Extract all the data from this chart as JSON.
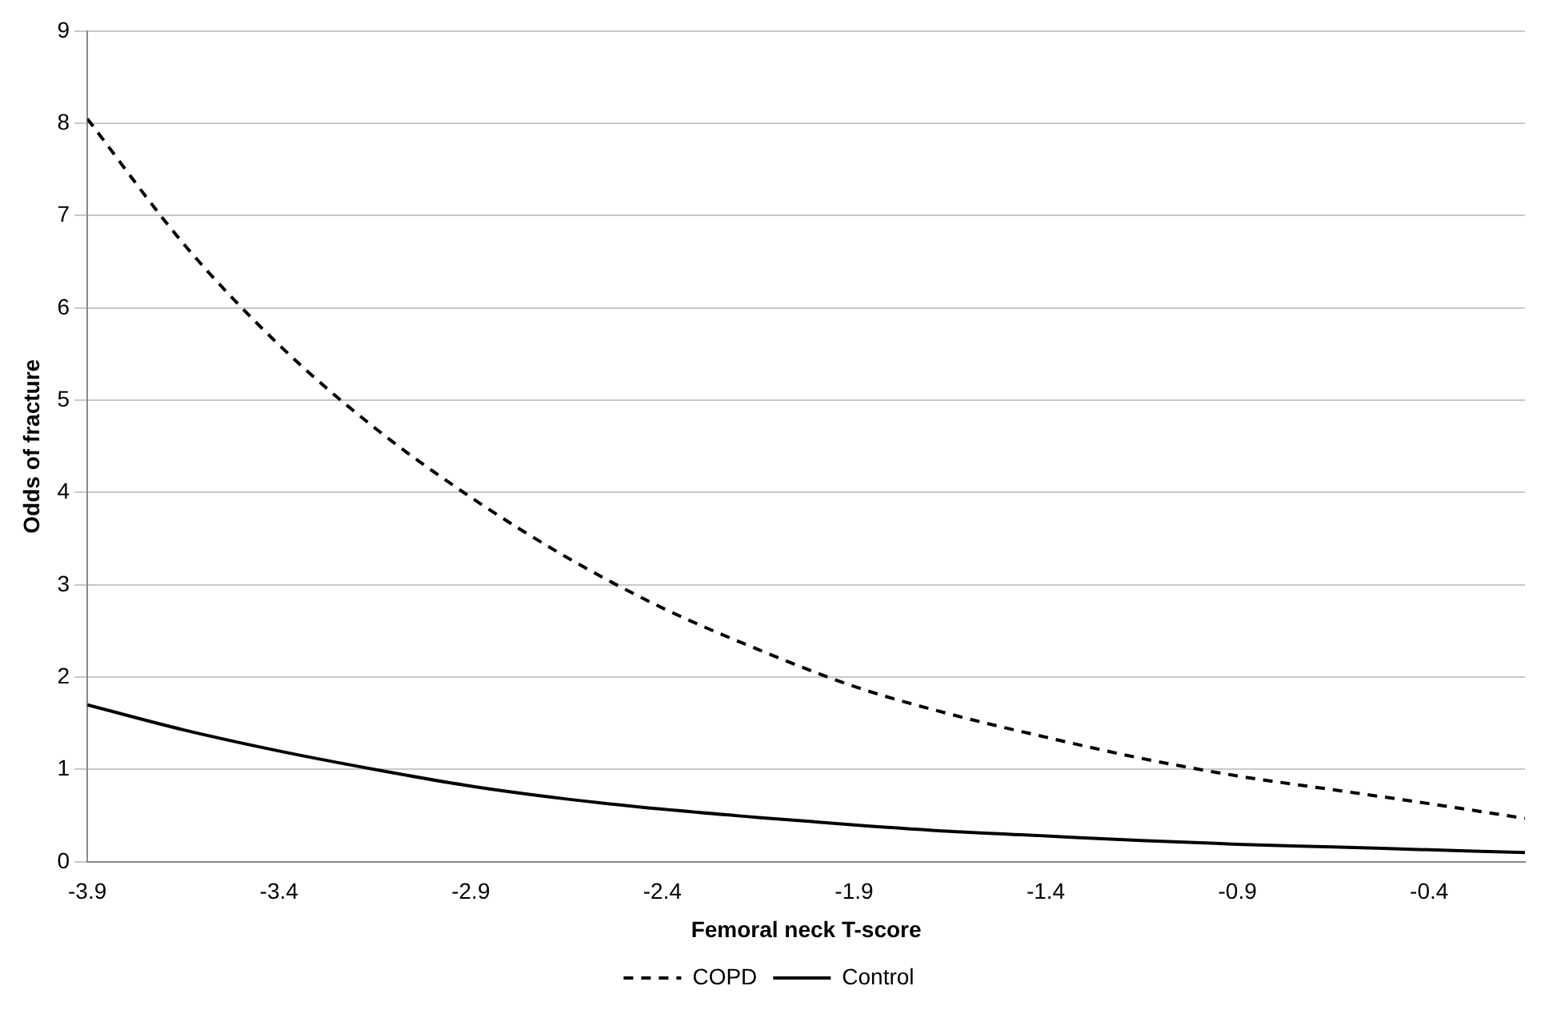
{
  "chart_data": {
    "type": "line",
    "xlabel": "Femoral neck T-score",
    "ylabel": "Odds of fracture",
    "xlim": [
      -3.9,
      -0.15
    ],
    "xticks": [
      -3.9,
      -3.4,
      -2.9,
      -2.4,
      -1.9,
      -1.4,
      -0.9,
      -0.4
    ],
    "ylim": [
      0,
      9
    ],
    "yticks": [
      0,
      1,
      2,
      3,
      4,
      5,
      6,
      7,
      8,
      9
    ],
    "grid": "y",
    "legend": "bottom",
    "marker": "none",
    "x": [
      -3.9,
      -3.65,
      -3.4,
      -3.15,
      -2.9,
      -2.65,
      -2.4,
      -2.15,
      -1.9,
      -1.65,
      -1.4,
      -1.15,
      -0.9,
      -0.65,
      -0.4,
      -0.15
    ],
    "series": [
      {
        "name": "COPD",
        "color": "#000000",
        "line_style": "dashed",
        "values": [
          8.05,
          6.7,
          5.6,
          4.7,
          3.95,
          3.3,
          2.75,
          2.3,
          1.9,
          1.6,
          1.35,
          1.12,
          0.93,
          0.78,
          0.63,
          0.47
        ]
      },
      {
        "name": "Control",
        "color": "#000000",
        "line_style": "solid",
        "values": [
          1.7,
          1.43,
          1.2,
          1.0,
          0.82,
          0.68,
          0.57,
          0.48,
          0.4,
          0.33,
          0.28,
          0.23,
          0.19,
          0.16,
          0.13,
          0.1
        ]
      }
    ]
  }
}
